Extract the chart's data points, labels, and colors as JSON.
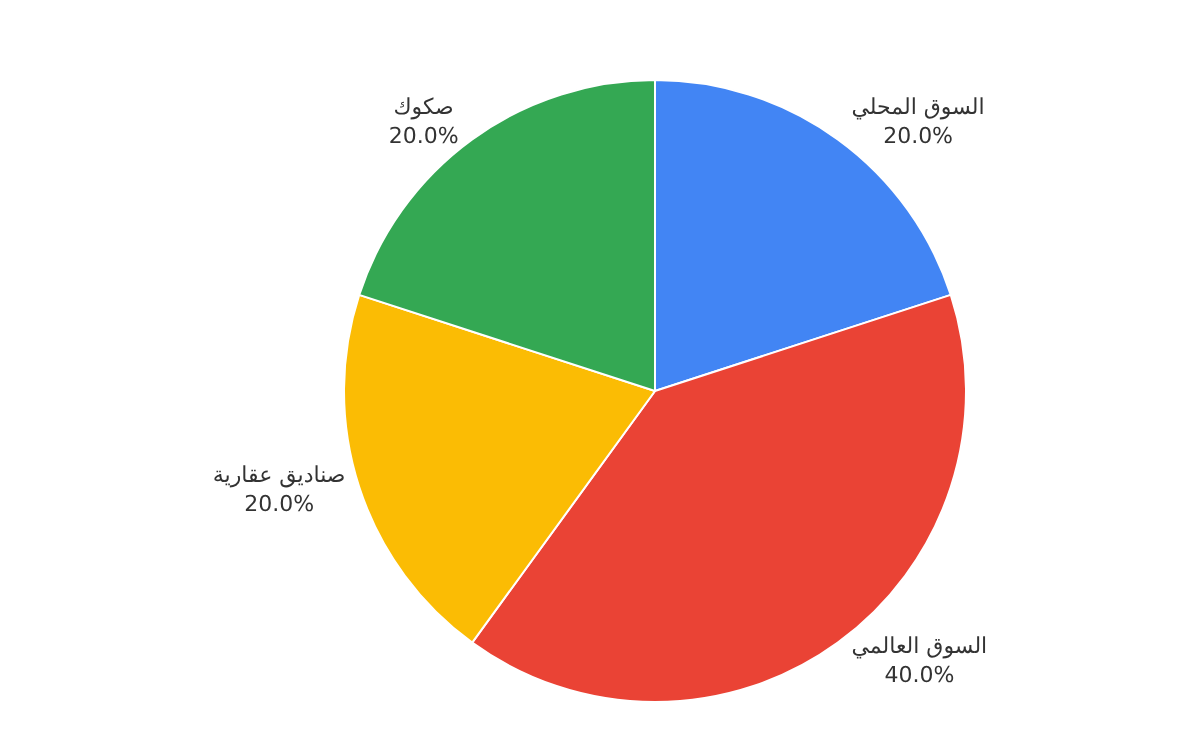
{
  "chart_data": {
    "type": "pie",
    "categories": [
      "السوق المحلي",
      "السوق العالمي",
      "صناديق عقارية",
      "صكوك"
    ],
    "values": [
      20,
      40,
      20,
      20
    ],
    "value_labels": [
      "20.0%",
      "40.0%",
      "20.0%",
      "20.0%"
    ],
    "colors": [
      "#4285f4",
      "#ea4335",
      "#fbbc04",
      "#34a853"
    ],
    "legend": false
  }
}
